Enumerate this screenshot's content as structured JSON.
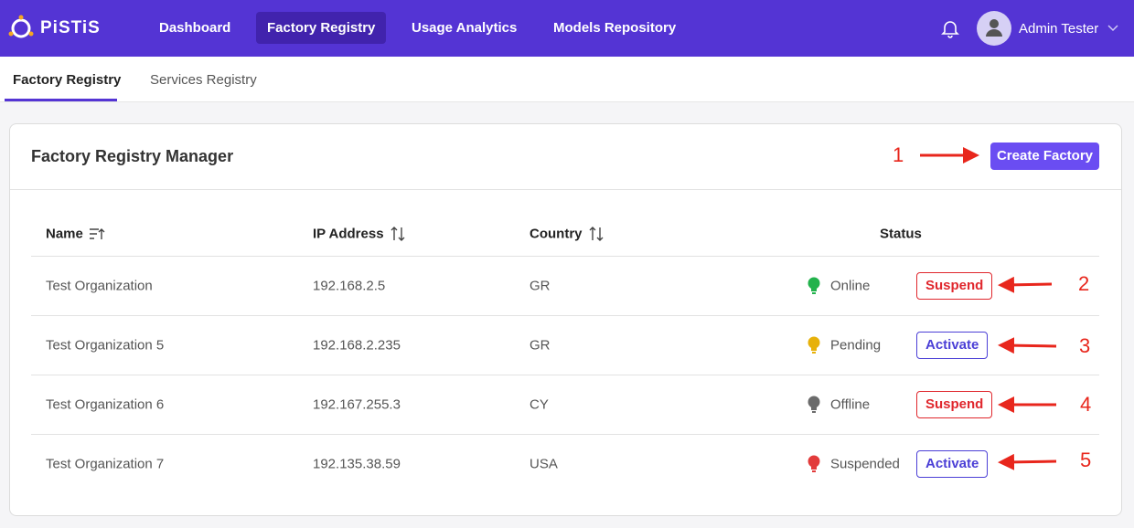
{
  "header": {
    "logo": "PiSTiS",
    "nav": [
      "Dashboard",
      "Factory Registry",
      "Usage Analytics",
      "Models Repository"
    ],
    "user": "Admin Tester"
  },
  "tabs": [
    "Factory Registry",
    "Services Registry"
  ],
  "panel": {
    "title": "Factory Registry Manager",
    "create_button": "Create Factory"
  },
  "table": {
    "columns": [
      "Name",
      "IP Address",
      "Country",
      "Status"
    ],
    "rows": [
      [
        "Test Organization",
        "192.168.2.5",
        "GR",
        "Online",
        "Suspend"
      ],
      [
        "Test Organization 5",
        "192.168.2.235",
        "GR",
        "Pending",
        "Activate"
      ],
      [
        "Test Organization 6",
        "192.167.255.3",
        "CY",
        "Offline",
        "Suspend"
      ],
      [
        "Test Organization 7",
        "192.135.38.59",
        "USA",
        "Suspended",
        "Activate"
      ]
    ]
  },
  "annotations": [
    "1",
    "2",
    "3",
    "4",
    "5"
  ]
}
